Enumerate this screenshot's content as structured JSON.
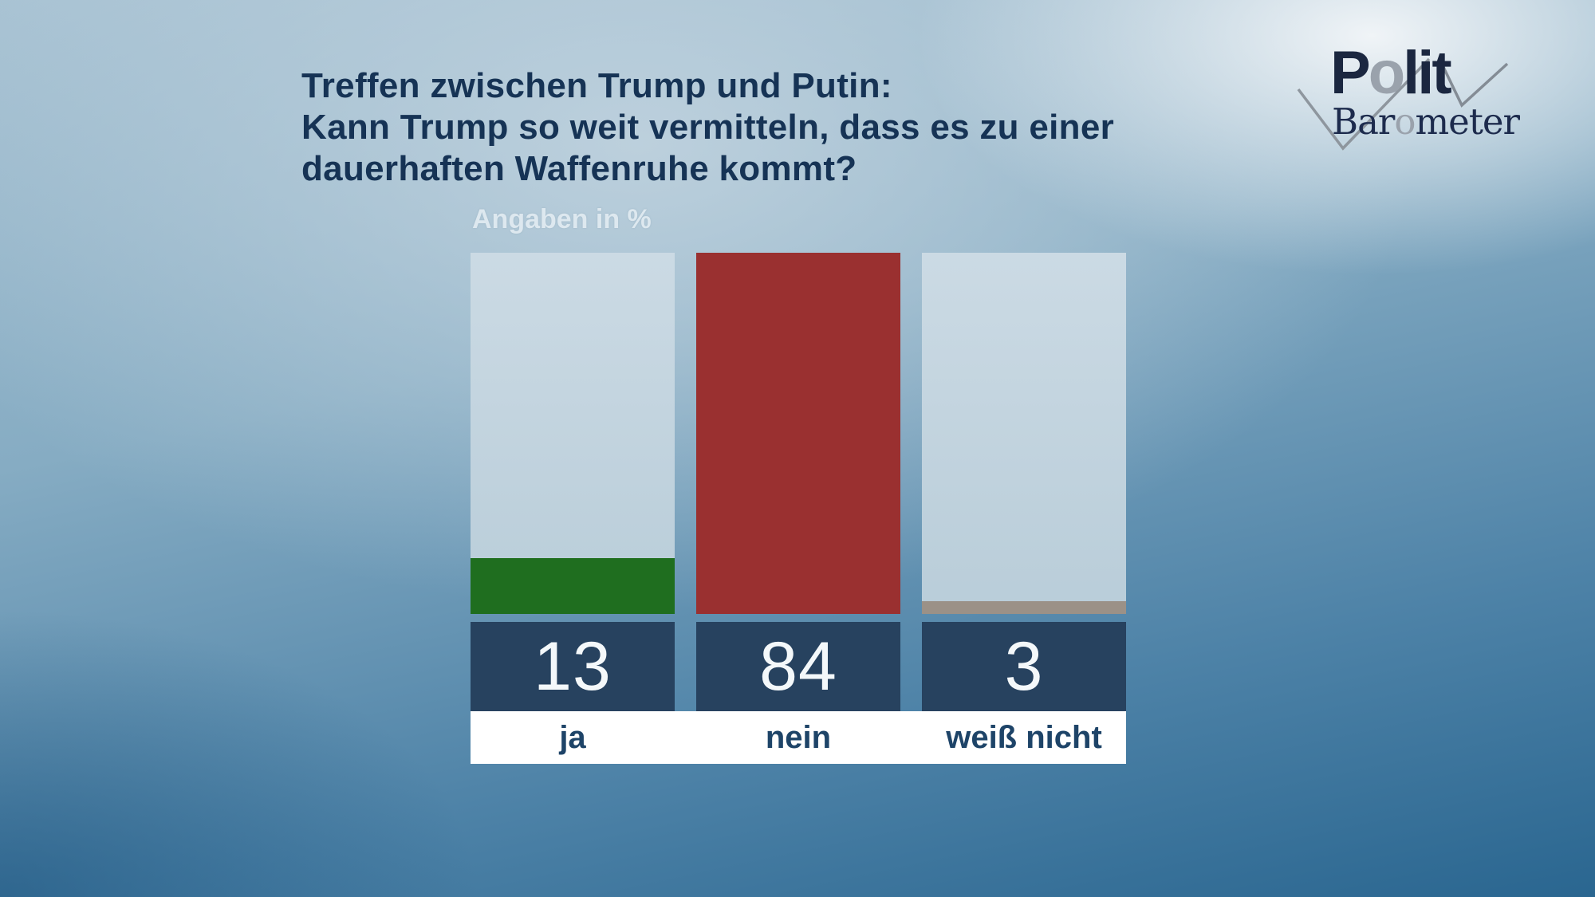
{
  "title": {
    "lines": [
      "Treffen zwischen Trump und Putin:",
      "Kann Trump so weit vermitteln, dass es zu einer",
      "dauerhaften Waffenruhe kommt?"
    ]
  },
  "chart_data": {
    "type": "bar",
    "title": "Treffen zwischen Trump und Putin: Kann Trump so weit vermitteln, dass es zu einer dauerhaften Waffenruhe kommt?",
    "subtitle": "Angaben in %",
    "unit": "%",
    "categories": [
      "ja",
      "nein",
      "weiß nicht"
    ],
    "values": [
      13,
      84,
      3
    ],
    "value_labels": [
      "13",
      "84",
      "3"
    ],
    "bar_colors": [
      "#1f6e1f",
      "#9a3030",
      "#9b9187"
    ],
    "ylim": [
      0,
      84
    ],
    "grid": false,
    "legend": "none",
    "layout_note": "tallest bar fills column track; values shown in navy boxes below bars"
  },
  "colors": {
    "title_text": "#163355",
    "subtitle_text": "#dde8ef",
    "track": "#c2d3de",
    "value_box": "#27425f",
    "value_text": "#f4f8fa",
    "label_strip": "#ffffff",
    "label_text": "#1e4468",
    "background_top_right": "#eef2f5",
    "background_bottom": "#215a85"
  },
  "logo": {
    "name": "Politbarometer",
    "polit": [
      "P",
      "o",
      "lit"
    ],
    "barometer": [
      "Bar",
      "o",
      "meter"
    ]
  }
}
